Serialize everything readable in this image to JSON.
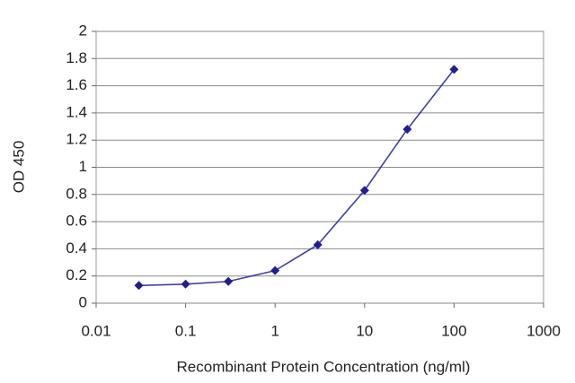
{
  "chart_data": {
    "type": "line",
    "x_label": "Recombinant Protein Concentration (ng/ml)",
    "y_label": "OD 450",
    "xscale": "log",
    "grid": true,
    "x": [
      0.03,
      0.1,
      0.3,
      1,
      3,
      10,
      30,
      100
    ],
    "series": [
      {
        "color": "#1f1f8f",
        "values": [
          0.13,
          0.14,
          0.16,
          0.24,
          0.43,
          0.83,
          1.28,
          1.72
        ]
      }
    ],
    "xlim": [
      0.01,
      1000
    ],
    "xticks": [
      0.01,
      0.1,
      1,
      10,
      100,
      1000
    ],
    "ylim": [
      0,
      2
    ],
    "yticks": [
      0,
      0.2,
      0.4,
      0.6,
      0.8,
      1,
      1.2,
      1.4,
      1.6,
      1.8,
      2
    ]
  }
}
